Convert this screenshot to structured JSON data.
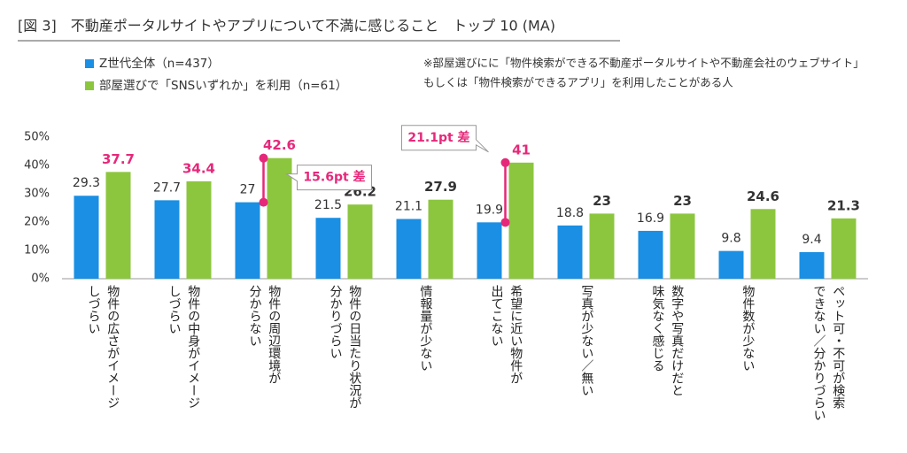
{
  "chart_data": {
    "type": "bar",
    "title": "[図 3]　不動産ポータルサイトやアプリについて不満に感じること　トップ 10 (MA)",
    "note": [
      "※部屋選びにに「物件検索ができる不動産ポータルサイトや不動産会社のウェブサイト」",
      "もしくは「物件検索ができるアプリ」を利用したことがある人"
    ],
    "categories": [
      "物件の広さがイメージ\nしづらい",
      "物件の中身がイメージ\nしづらい",
      "物件の周辺環境が\n分からない",
      "物件の日当たり状況が\n分かりづらい",
      "情報量が少ない",
      "希望に近い物件が\n出てこない",
      "写真が少ない／無い",
      "数字や写真だけだと\n味気なく感じる",
      "物件数が少ない",
      "ペット可・不可が検索\nできない／分かりづらい"
    ],
    "series": [
      {
        "name": "Z世代全体（n=437）",
        "color": "#1a8fe3",
        "values": [
          29.3,
          27.7,
          27.0,
          21.5,
          21.1,
          19.9,
          18.8,
          16.9,
          9.8,
          9.4
        ],
        "label_colors": [
          "#333333",
          "#333333",
          "#333333",
          "#333333",
          "#333333",
          "#333333",
          "#333333",
          "#333333",
          "#333333",
          "#333333"
        ]
      },
      {
        "name": "部屋選びで「SNSいずれか」を利用（n=61）",
        "color": "#8cc63f",
        "values": [
          37.7,
          34.4,
          42.6,
          26.2,
          27.9,
          41.0,
          23.0,
          23.0,
          24.6,
          21.3
        ],
        "label_colors": [
          "#e6287a",
          "#e6287a",
          "#e6287a",
          "#333333",
          "#333333",
          "#e6287a",
          "#333333",
          "#333333",
          "#333333",
          "#333333"
        ]
      }
    ],
    "annotations": [
      {
        "text": "15.6pt 差",
        "index": 2
      },
      {
        "text": "21.1pt 差",
        "index": 5
      }
    ],
    "annotation_color": "#e6287a",
    "ylim": [
      0,
      50
    ],
    "yticks": [
      {
        "value": 0,
        "label": "0%"
      },
      {
        "value": 10,
        "label": "10%"
      },
      {
        "value": 20,
        "label": "20%"
      },
      {
        "value": 30,
        "label": "30%"
      },
      {
        "value": 40,
        "label": "40%"
      },
      {
        "value": 50,
        "label": "50%"
      }
    ],
    "grid": false
  }
}
